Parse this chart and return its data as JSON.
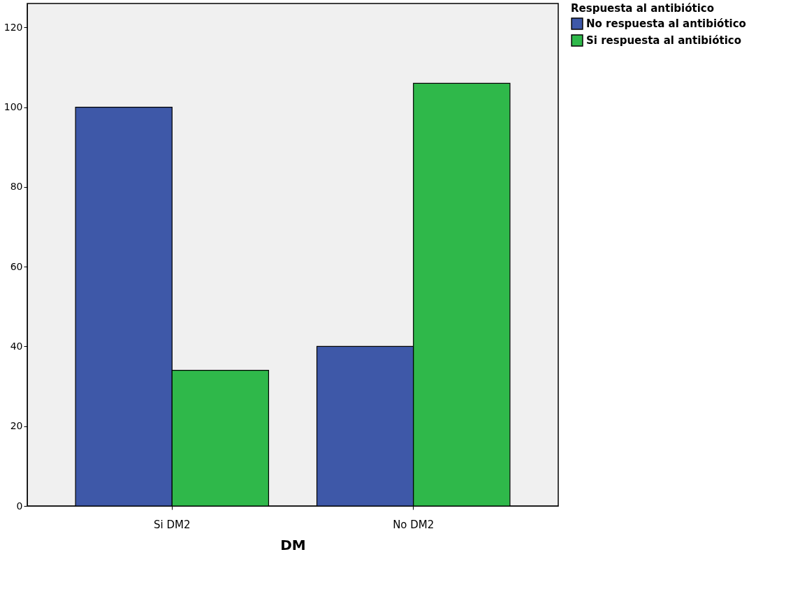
{
  "chart_data": {
    "type": "bar",
    "xlabel": "DM",
    "legend_title": "Respuesta al antibiótico",
    "categories": [
      "Si DM2",
      "No DM2"
    ],
    "series": [
      {
        "name": "No respuesta  al antibiótico",
        "color": "#3e58a8",
        "values": [
          100,
          40
        ]
      },
      {
        "name": "Si respuesta  al antibiótico",
        "color": "#2fb84a",
        "values": [
          34,
          106
        ]
      }
    ],
    "ylim": [
      0,
      126
    ],
    "yticks": [
      0,
      20,
      40,
      60,
      80,
      100,
      120
    ],
    "grid": false,
    "legend": "top right"
  }
}
